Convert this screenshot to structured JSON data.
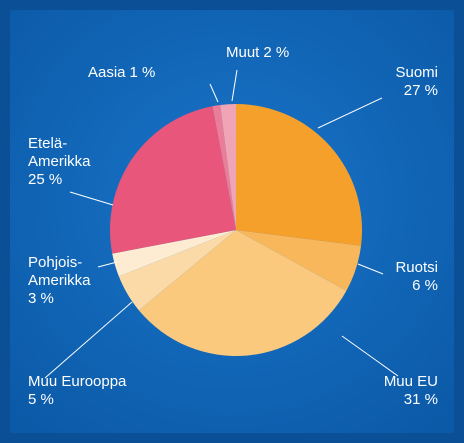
{
  "chart_data": {
    "type": "pie",
    "categories": [
      "Suomi",
      "Ruotsi",
      "Muu EU",
      "Muu Eurooppa",
      "Pohjois-\nAmerikka",
      "Etelä-\nAmerikka",
      "Aasia",
      "Muut"
    ],
    "values": [
      27,
      6,
      31,
      5,
      3,
      25,
      1,
      2
    ],
    "value_labels": [
      "27 %",
      "6 %",
      "31 %",
      "5 %",
      "3 %",
      "25 %",
      "1 %",
      "2 %"
    ],
    "colors": [
      "#f5a02a",
      "#f7b75a",
      "#fac97e",
      "#fbdaa8",
      "#fdecd2",
      "#e8577b",
      "#ea7d97",
      "#f0a5b6"
    ]
  }
}
